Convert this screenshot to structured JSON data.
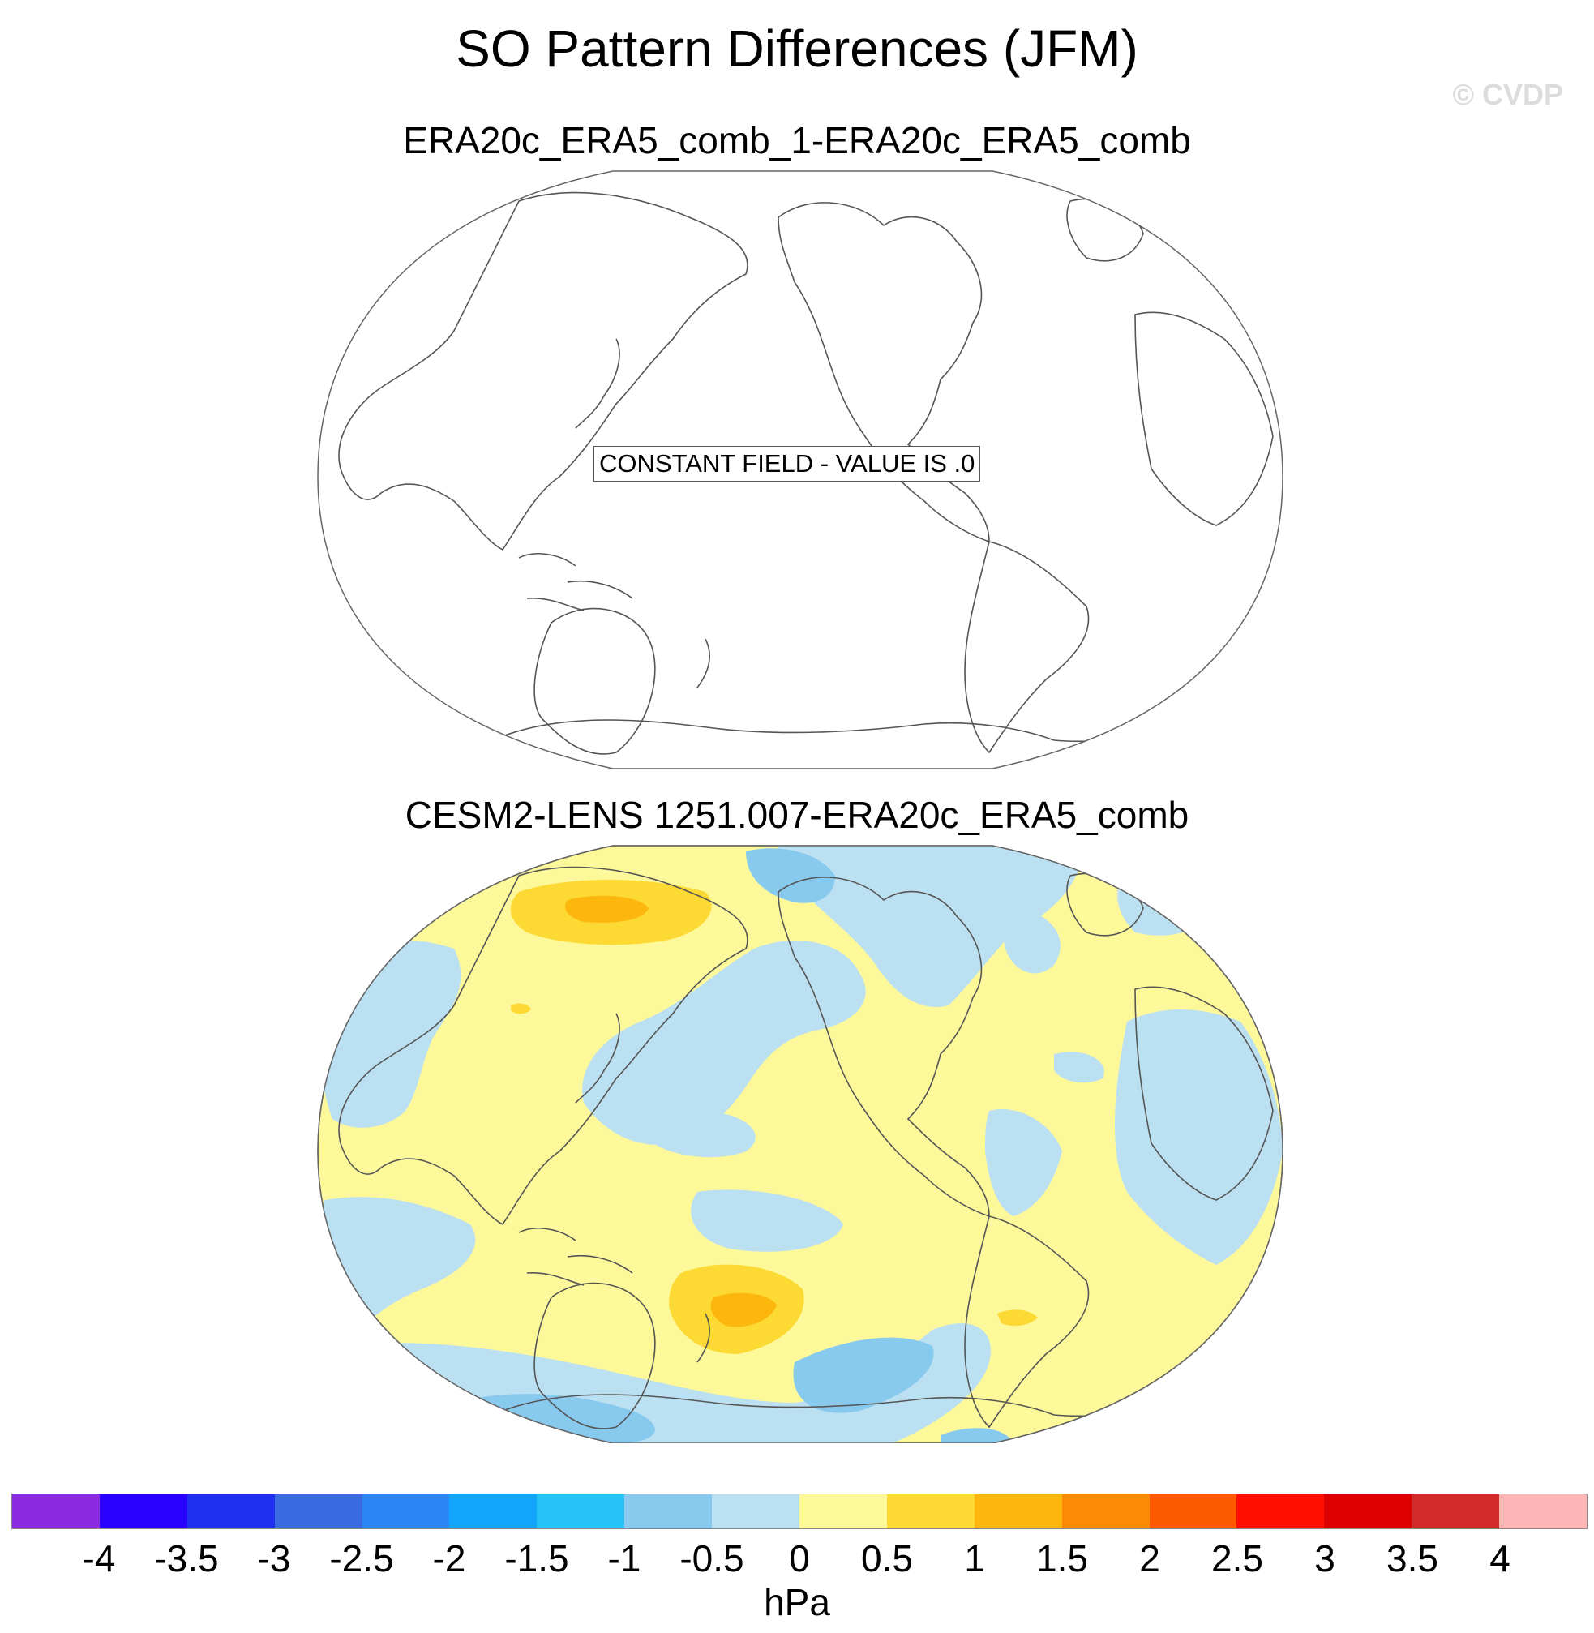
{
  "figure": {
    "title": "SO Pattern Differences (JFM)",
    "watermark": "© CVDP"
  },
  "panels": [
    {
      "title": "ERA20c_ERA5_comb_1-ERA20c_ERA5_comb",
      "label": "CONSTANT FIELD - VALUE IS .0"
    },
    {
      "title": "CESM2-LENS 1251.007-ERA20c_ERA5_comb"
    }
  ],
  "colorbar": {
    "unit": "hPa",
    "ticks": [
      "-4",
      "-3.5",
      "-3",
      "-2.5",
      "-2",
      "-1.5",
      "-1",
      "-0.5",
      "0",
      "0.5",
      "1",
      "1.5",
      "2",
      "2.5",
      "3",
      "3.5",
      "4"
    ],
    "colors": [
      "#8a2be2",
      "#2a00ff",
      "#2030f0",
      "#3a6be0",
      "#2b86f7",
      "#12a5fb",
      "#27c4fa",
      "#88c9ee",
      "#bbe0f2",
      "#fdf89a",
      "#fcd933",
      "#fdb60d",
      "#fd8a05",
      "#fd5a00",
      "#fe0f00",
      "#dc0000",
      "#d32a2a",
      "#fdb5b5"
    ]
  },
  "colors": {
    "land_outline": "#555555",
    "light_negative": "#bbe0f2",
    "mid_negative": "#88c9ee",
    "light_positive": "#fdf89a",
    "mid_positive": "#fcd933",
    "strong_positive": "#fdb60d"
  }
}
